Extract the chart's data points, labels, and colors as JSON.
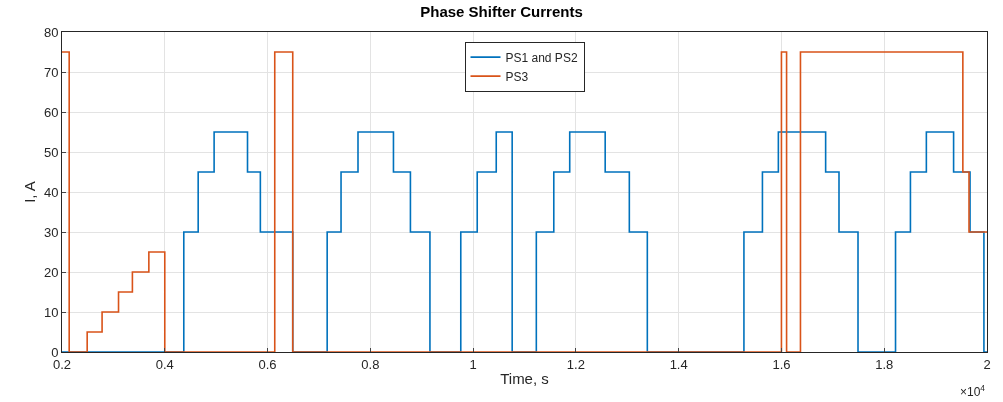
{
  "chart_data": {
    "type": "step",
    "title": "Phase Shifter Currents",
    "xlabel": "Time, s",
    "ylabel": "I, A",
    "annotations": [
      "×10$^{4}$"
    ],
    "series": [
      {
        "name": "PS1 and PS2",
        "color": "#0072bd",
        "x": [
          0.2,
          0.437,
          0.465,
          0.496,
          0.561,
          0.586,
          0.649,
          0.716,
          0.743,
          0.776,
          0.845,
          0.878,
          0.916,
          0.976,
          1.008,
          1.045,
          1.076,
          1.123,
          1.157,
          1.188,
          1.257,
          1.304,
          1.339,
          1.527,
          1.563,
          1.594,
          1.686,
          1.712,
          1.749,
          1.822,
          1.851,
          1.882,
          1.935,
          1.967,
          1.994,
          2.0
        ],
        "values": [
          0,
          30,
          45,
          55,
          45,
          30,
          0,
          30,
          45,
          55,
          45,
          30,
          0,
          30,
          45,
          55,
          0,
          30,
          45,
          55,
          45,
          30,
          0,
          30,
          45,
          55,
          45,
          30,
          0,
          30,
          45,
          55,
          45,
          30,
          0,
          0
        ]
      },
      {
        "name": "PS3",
        "color": "#d95319",
        "x": [
          0.2,
          0.214,
          0.249,
          0.278,
          0.31,
          0.337,
          0.369,
          0.4,
          0.614,
          0.649,
          1.6,
          1.61,
          1.637,
          1.953,
          1.965,
          2.0
        ],
        "values": [
          75,
          0,
          5,
          10,
          15,
          20,
          25,
          0,
          75,
          0,
          75,
          0,
          75,
          45,
          30,
          30
        ]
      }
    ],
    "xlim": [
      0.2,
      2.0
    ],
    "xticks": [
      0.2,
      0.4,
      0.6,
      0.8,
      1,
      1.2,
      1.4,
      1.6,
      1.8,
      2
    ],
    "ylim": [
      0,
      80
    ],
    "yticks": [
      0,
      10,
      20,
      30,
      40,
      50,
      60,
      70,
      80
    ],
    "grid": true,
    "legend": "top",
    "line_style": "solid"
  }
}
